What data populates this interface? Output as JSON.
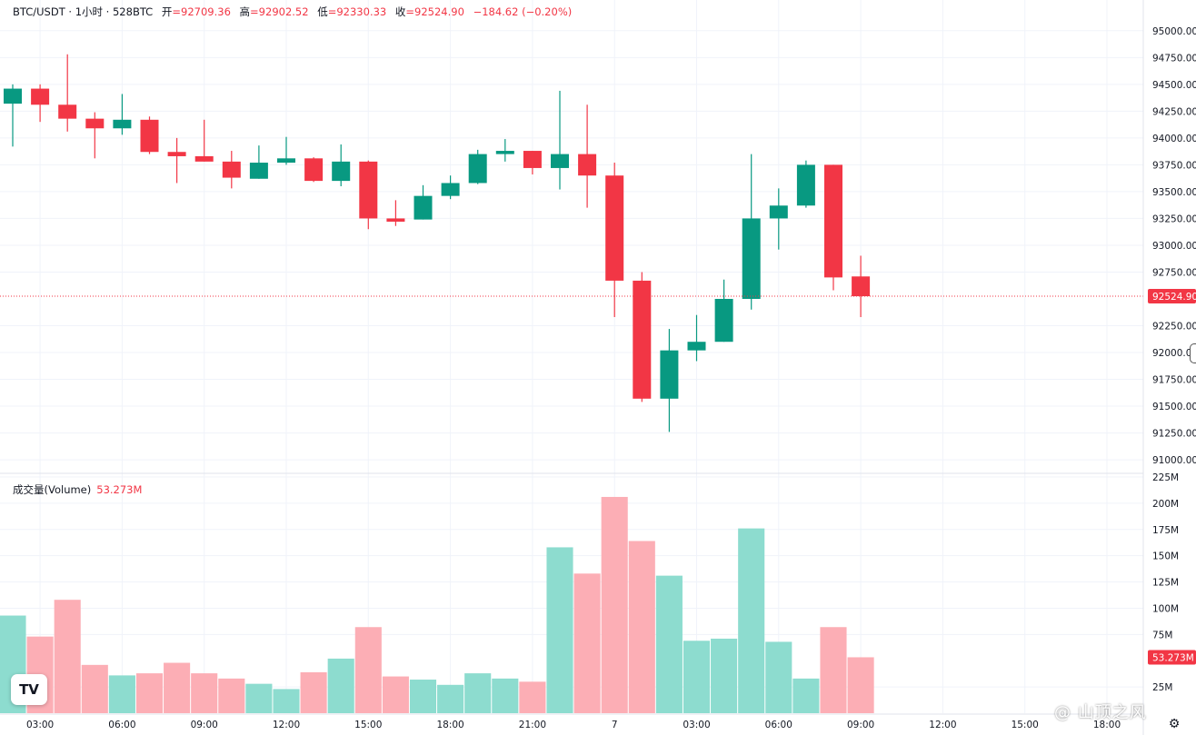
{
  "header": {
    "symbol": "BTC/USDT · 1小时 · 528BTC",
    "open_label": "开",
    "open": "=92709.36",
    "high_label": "高",
    "high": "=92902.52",
    "low_label": "低",
    "low": "=92330.33",
    "close_label": "收",
    "close": "=92524.90",
    "change": "−184.62 (−0.20%)"
  },
  "volume_header": {
    "label": "成交量(Volume)",
    "value": "53.273M"
  },
  "colors": {
    "up": "#089981",
    "down": "#f23645",
    "up_volume": "#8ddccf",
    "down_volume": "#fcaeb5",
    "grid": "#f0f3fa",
    "axis_text": "#131722"
  },
  "logo_text": "TV",
  "watermark": "@ 山顶之风",
  "chart_data": {
    "type": "candlestick",
    "price_axis": {
      "range": [
        90950,
        95100
      ],
      "ticks": [
        "95000.00",
        "94750.00",
        "94500.00",
        "94250.00",
        "94000.00",
        "93750.00",
        "93500.00",
        "93250.00",
        "93000.00",
        "92750.00",
        "92250.00",
        "92000.00",
        "91750.00",
        "91500.00",
        "91250.00",
        "91000.00"
      ],
      "last_price": 92524.9,
      "last_price_label": "92524.90"
    },
    "volume_axis": {
      "range": [
        0,
        225
      ],
      "ticks": [
        "225M",
        "200M",
        "175M",
        "150M",
        "125M",
        "100M",
        "75M",
        "25M"
      ],
      "last_volume": 53.273,
      "last_volume_label": "53.273M"
    },
    "time_labels": [
      {
        "label": "03:00",
        "index": 1
      },
      {
        "label": "06:00",
        "index": 4
      },
      {
        "label": "09:00",
        "index": 7
      },
      {
        "label": "12:00",
        "index": 10
      },
      {
        "label": "15:00",
        "index": 13
      },
      {
        "label": "18:00",
        "index": 16
      },
      {
        "label": "21:00",
        "index": 19
      },
      {
        "label": "7",
        "index": 22
      },
      {
        "label": "03:00",
        "index": 25
      },
      {
        "label": "06:00",
        "index": 28
      },
      {
        "label": "09:00",
        "index": 31
      },
      {
        "label": "12:00",
        "index": 34
      },
      {
        "label": "15:00",
        "index": 37
      },
      {
        "label": "18:00",
        "index": 40
      }
    ],
    "candles": [
      {
        "o": 94320,
        "h": 94500,
        "l": 93920,
        "c": 94460,
        "v": 93
      },
      {
        "o": 94460,
        "h": 94500,
        "l": 94150,
        "c": 94310,
        "v": 73
      },
      {
        "o": 94310,
        "h": 94780,
        "l": 94060,
        "c": 94180,
        "v": 108
      },
      {
        "o": 94180,
        "h": 94240,
        "l": 93810,
        "c": 94090,
        "v": 46
      },
      {
        "o": 94090,
        "h": 94410,
        "l": 94030,
        "c": 94170,
        "v": 36
      },
      {
        "o": 94170,
        "h": 94200,
        "l": 93850,
        "c": 93870,
        "v": 38
      },
      {
        "o": 93870,
        "h": 94000,
        "l": 93580,
        "c": 93830,
        "v": 48
      },
      {
        "o": 93830,
        "h": 94170,
        "l": 93780,
        "c": 93780,
        "v": 38
      },
      {
        "o": 93780,
        "h": 93880,
        "l": 93530,
        "c": 93630,
        "v": 33
      },
      {
        "o": 93620,
        "h": 93930,
        "l": 93620,
        "c": 93770,
        "v": 28
      },
      {
        "o": 93770,
        "h": 94010,
        "l": 93750,
        "c": 93810,
        "v": 23
      },
      {
        "o": 93810,
        "h": 93820,
        "l": 93590,
        "c": 93600,
        "v": 39
      },
      {
        "o": 93600,
        "h": 93940,
        "l": 93550,
        "c": 93780,
        "v": 52
      },
      {
        "o": 93780,
        "h": 93790,
        "l": 93150,
        "c": 93250,
        "v": 82
      },
      {
        "o": 93250,
        "h": 93420,
        "l": 93180,
        "c": 93220,
        "v": 35
      },
      {
        "o": 93240,
        "h": 93560,
        "l": 93240,
        "c": 93460,
        "v": 32
      },
      {
        "o": 93460,
        "h": 93650,
        "l": 93430,
        "c": 93580,
        "v": 27
      },
      {
        "o": 93580,
        "h": 93890,
        "l": 93570,
        "c": 93850,
        "v": 38
      },
      {
        "o": 93850,
        "h": 93990,
        "l": 93780,
        "c": 93880,
        "v": 33
      },
      {
        "o": 93880,
        "h": 93880,
        "l": 93660,
        "c": 93720,
        "v": 30
      },
      {
        "o": 93720,
        "h": 94440,
        "l": 93520,
        "c": 93850,
        "v": 158
      },
      {
        "o": 93850,
        "h": 94310,
        "l": 93350,
        "c": 93650,
        "v": 133
      },
      {
        "o": 93650,
        "h": 93770,
        "l": 92330,
        "c": 92670,
        "v": 206
      },
      {
        "o": 92670,
        "h": 92750,
        "l": 91540,
        "c": 91570,
        "v": 164
      },
      {
        "o": 91570,
        "h": 92220,
        "l": 91260,
        "c": 92020,
        "v": 131
      },
      {
        "o": 92020,
        "h": 92350,
        "l": 91920,
        "c": 92100,
        "v": 69
      },
      {
        "o": 92100,
        "h": 92680,
        "l": 92100,
        "c": 92500,
        "v": 71
      },
      {
        "o": 92500,
        "h": 93850,
        "l": 92400,
        "c": 93250,
        "v": 176
      },
      {
        "o": 93250,
        "h": 93530,
        "l": 92960,
        "c": 93370,
        "v": 68
      },
      {
        "o": 93370,
        "h": 93790,
        "l": 93350,
        "c": 93750,
        "v": 33
      },
      {
        "o": 93750,
        "h": 93750,
        "l": 92580,
        "c": 92700,
        "v": 82
      },
      {
        "o": 92709.36,
        "h": 92902.52,
        "l": 92330.33,
        "c": 92524.9,
        "v": 53.273
      }
    ]
  }
}
